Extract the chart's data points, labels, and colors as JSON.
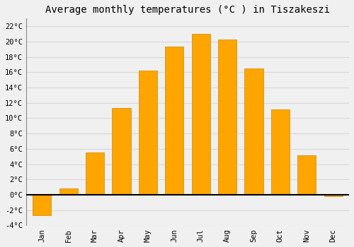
{
  "title": "Average monthly temperatures (°C ) in Tiszakeszi",
  "months": [
    "Jan",
    "Feb",
    "Mar",
    "Apr",
    "May",
    "Jun",
    "Jul",
    "Aug",
    "Sep",
    "Oct",
    "Nov",
    "Dec"
  ],
  "values": [
    -2.7,
    0.8,
    5.5,
    11.3,
    16.2,
    19.3,
    21.0,
    20.3,
    16.5,
    11.1,
    5.2,
    -0.2
  ],
  "bar_color": "#FFA500",
  "bar_edge_color": "#CC8800",
  "background_color": "#f0f0f0",
  "plot_bg_color": "#f0f0f0",
  "grid_color": "#d8d8d8",
  "zero_line_color": "#000000",
  "ylim": [
    -4,
    23
  ],
  "yticks": [
    -4,
    -2,
    0,
    2,
    4,
    6,
    8,
    10,
    12,
    14,
    16,
    18,
    20,
    22
  ],
  "ytick_labels": [
    "-4°C",
    "-2°C",
    "0°C",
    "2°C",
    "4°C",
    "6°C",
    "8°C",
    "10°C",
    "12°C",
    "14°C",
    "16°C",
    "18°C",
    "20°C",
    "22°C"
  ],
  "title_fontsize": 10,
  "tick_fontsize": 7.5,
  "font_family": "monospace",
  "bar_width": 0.7
}
